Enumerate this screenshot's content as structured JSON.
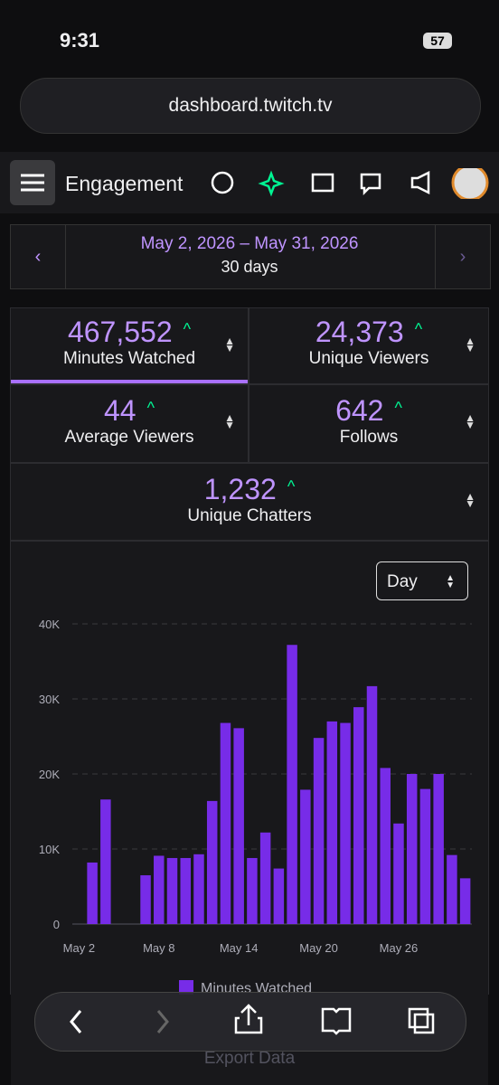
{
  "status_bar": {
    "time": "9:31",
    "battery": "57"
  },
  "browser": {
    "url": "dashboard.twitch.tv"
  },
  "header": {
    "title": "Engagement"
  },
  "date_range": {
    "range": "May 2, 2026 – May 31, 2026",
    "length": "30 days"
  },
  "stats": [
    {
      "value": "467,552",
      "label": "Minutes Watched"
    },
    {
      "value": "24,373",
      "label": "Unique Viewers"
    },
    {
      "value": "44",
      "label": "Average Viewers"
    },
    {
      "value": "642",
      "label": "Follows"
    },
    {
      "value": "1,232",
      "label": "Unique Chatters"
    }
  ],
  "interval": "Day",
  "chart_data": {
    "type": "bar",
    "categories": [
      "May 2",
      null,
      null,
      null,
      null,
      null,
      "May 8",
      null,
      null,
      null,
      null,
      null,
      "May 14",
      null,
      null,
      null,
      null,
      null,
      "May 20",
      null,
      null,
      null,
      null,
      null,
      "May 26",
      null,
      null,
      null,
      null,
      null
    ],
    "series": [
      {
        "name": "Minutes Watched",
        "color": "#772ce8",
        "values": [
          0,
          8200,
          16600,
          0,
          0,
          6500,
          9100,
          8800,
          8800,
          9300,
          16400,
          26800,
          26100,
          8800,
          12200,
          7400,
          37200,
          17900,
          24800,
          27000,
          26800,
          28900,
          31700,
          20800,
          13400,
          20000,
          18000,
          20000,
          9200,
          6100
        ]
      }
    ],
    "ylim": [
      0,
      40000
    ],
    "yticks": [
      0,
      {
        "value": 10000,
        "label": "10K"
      },
      {
        "value": 20000,
        "label": "20K"
      },
      {
        "value": 30000,
        "label": "30K"
      },
      {
        "value": 40000,
        "label": "40K"
      }
    ],
    "grid": true
  },
  "footer": {
    "export": "Export Data"
  }
}
